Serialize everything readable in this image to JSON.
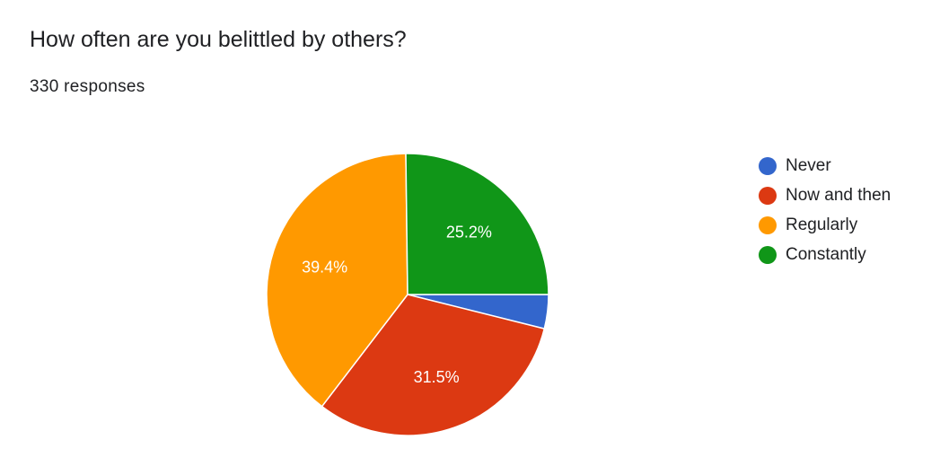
{
  "header": {
    "title": "How often are you belittled by others?",
    "responses": "330 responses"
  },
  "chart_data": {
    "type": "pie",
    "title": "How often are you belittled by others?",
    "total_responses": 330,
    "legend_position": "right",
    "slices": [
      {
        "label": "Never",
        "percent": 3.9,
        "color": "#3366cc",
        "display_label": ""
      },
      {
        "label": "Now and then",
        "percent": 31.5,
        "color": "#dc3912",
        "display_label": "31.5%"
      },
      {
        "label": "Regularly",
        "percent": 39.4,
        "color": "#ff9900",
        "display_label": "39.4%"
      },
      {
        "label": "Constantly",
        "percent": 25.2,
        "color": "#109618",
        "display_label": "25.2%"
      }
    ]
  }
}
